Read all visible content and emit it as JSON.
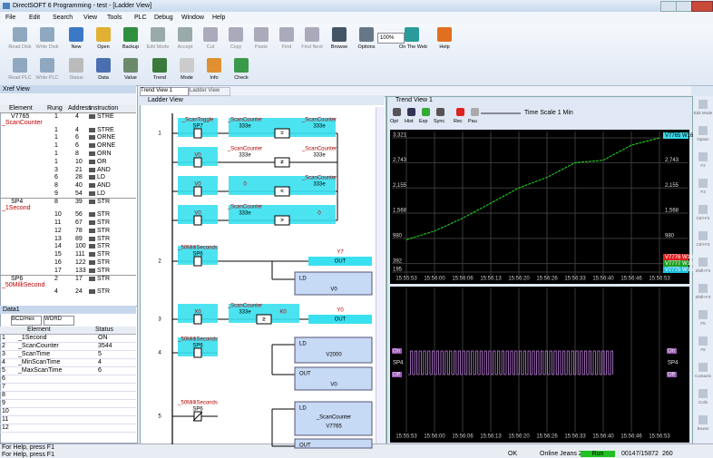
{
  "window": {
    "title": "DirectSOFT 6 Programming - test - [Ladder View]"
  },
  "menu": [
    "File",
    "Edit",
    "Search",
    "View",
    "Tools",
    "PLC",
    "Debug",
    "Window",
    "Help"
  ],
  "toolbar1": [
    "Read Disk",
    "Write Disk",
    "New",
    "Open",
    "Backup",
    "Edit Mode",
    "Accept",
    "Cut",
    "Copy",
    "Paste",
    "Find",
    "Find Next",
    "Browse",
    "Options",
    "100%",
    "On The Web",
    "Help"
  ],
  "toolbar2": [
    "Read PLC",
    "Write PLC",
    "Status",
    "Data",
    "Value",
    "Trend",
    "Mode",
    "Info",
    "Check"
  ],
  "xref": {
    "title": "Xref View",
    "columns": [
      "Element",
      "Rung",
      "Address",
      "Instruction"
    ],
    "rows": [
      {
        "element": "V7765",
        "nickname": "_ScanCounter",
        "rung": 1,
        "address": 4,
        "instruction": "STRE"
      },
      {
        "rung": 1,
        "address": 4,
        "instruction": "STRE"
      },
      {
        "rung": 1,
        "address": 6,
        "instruction": "ORNE"
      },
      {
        "rung": 1,
        "address": 6,
        "instruction": "ORNE"
      },
      {
        "rung": 1,
        "address": 8,
        "instruction": "ORN"
      },
      {
        "rung": 1,
        "address": 10,
        "instruction": "OR"
      },
      {
        "rung": 3,
        "address": 21,
        "instruction": "AND"
      },
      {
        "rung": 6,
        "address": 28,
        "instruction": "LD"
      },
      {
        "rung": 8,
        "address": 40,
        "instruction": "AND"
      },
      {
        "rung": 9,
        "address": 54,
        "instruction": "LD"
      },
      {
        "element": "SP4",
        "nickname": "_1Second",
        "rung": 8,
        "address": 39,
        "instruction": "STR"
      },
      {
        "rung": 10,
        "address": 56,
        "instruction": "STR"
      },
      {
        "rung": 11,
        "address": 67,
        "instruction": "STR"
      },
      {
        "rung": 12,
        "address": 78,
        "instruction": "STR"
      },
      {
        "rung": 13,
        "address": 89,
        "instruction": "STR"
      },
      {
        "rung": 14,
        "address": 100,
        "instruction": "STR"
      },
      {
        "rung": 15,
        "address": 111,
        "instruction": "STR"
      },
      {
        "rung": 16,
        "address": 122,
        "instruction": "STR"
      },
      {
        "rung": 17,
        "address": 133,
        "instruction": "STR"
      },
      {
        "element": "SP6",
        "nickname": "_50MilliSecond",
        "rung": 2,
        "address": 17,
        "instruction": "STR"
      },
      {
        "rung": 4,
        "address": 24,
        "instruction": "STR"
      }
    ]
  },
  "data_view": {
    "title": "Data1",
    "format": "BCD/Hex",
    "size": "WORD",
    "columns": [
      "Element",
      "Status"
    ],
    "row_numbers": [
      1,
      2,
      3,
      4,
      5,
      6,
      7,
      8,
      9,
      10,
      11,
      12
    ],
    "rows": [
      [
        "_1Second",
        "ON"
      ],
      [
        "_ScanCounter",
        3544
      ],
      [
        "_ScanTime",
        5
      ],
      [
        "_MinScanTime",
        4
      ],
      [
        "_MaxScanTime",
        6
      ]
    ]
  },
  "tabs": [
    "Trend View 1",
    "Ladder View"
  ],
  "ladder": {
    "title": "Ladder View",
    "rungs": [
      {
        "number": 1,
        "rows": [
          [
            {
              "type": "contact",
              "active": true,
              "lines": [
                "_ScanToggle",
                "SP7"
              ]
            },
            {
              "type": "compare",
              "active": true,
              "left": [
                "_ScanCounter",
                "333e"
              ],
              "op": "=",
              "right": [
                "_ScanCounter",
                "333e"
              ]
            }
          ],
          [
            {
              "type": "contact",
              "active": true,
              "lines": [
                "V0"
              ]
            },
            {
              "type": "compare",
              "active": false,
              "left": [
                "_ScanCounter",
                "333e"
              ],
              "op": "≠",
              "right": [
                "_ScanCounter",
                "333e"
              ]
            }
          ],
          [
            {
              "type": "contact",
              "active": true,
              "lines": [
                "V0"
              ]
            },
            {
              "type": "compare",
              "active": true,
              "left": [
                "0"
              ],
              "op": "<",
              "right": [
                "_ScanCounter",
                "333e"
              ]
            }
          ],
          [
            {
              "type": "contact",
              "active": true,
              "lines": [
                "V0"
              ]
            },
            {
              "type": "compare",
              "active": true,
              "left": [
                "_ScanCounter",
                "333e"
              ],
              "op": ">",
              "right": [
                "0"
              ]
            }
          ]
        ],
        "boxes": []
      },
      {
        "number": 2,
        "rows": [
          [
            {
              "type": "contact",
              "active": true,
              "lines": [
                "_50MilliSeconds",
                "SP6"
              ]
            },
            {
              "type": "coil",
              "active": true,
              "lines": [
                "Y7",
                "OUT"
              ]
            }
          ]
        ],
        "boxes": [
          [
            "LD",
            "V0"
          ]
        ]
      },
      {
        "number": 3,
        "rows": [
          [
            {
              "type": "contact",
              "active": true,
              "lines": [
                "X0"
              ]
            },
            {
              "type": "compare",
              "active": true,
              "left": [
                "_ScanCounter",
                "333e"
              ],
              "op": "≥",
              "right": [
                "K0"
              ]
            },
            {
              "type": "coil",
              "active": true,
              "lines": [
                "Y0",
                "OUT"
              ]
            }
          ]
        ],
        "boxes": []
      },
      {
        "number": 4,
        "rows": [
          [
            {
              "type": "contact",
              "active": true,
              "lines": [
                "_50MilliSeconds",
                "SP6"
              ]
            }
          ]
        ],
        "boxes": [
          [
            "LD",
            "V2000"
          ],
          [
            "OUT",
            "V0"
          ]
        ]
      },
      {
        "number": 5,
        "rows": [
          [
            {
              "type": "contact",
              "active": false,
              "lines": [
                "_50MilliSeconds",
                "SP6"
              ]
            }
          ]
        ],
        "boxes": [
          [
            "LD",
            "_ScanCounter",
            "V7765"
          ],
          [
            "OUT"
          ]
        ]
      }
    ]
  },
  "trend": {
    "title": "Trend View 1",
    "buttons": [
      "Opt",
      "Hist",
      "Exp",
      "Sync",
      "Rec",
      "Pau"
    ],
    "time_scale": "Time Scale 1 Min",
    "top": {
      "type": "line",
      "x": [
        "15:55:53",
        "15:56:00",
        "15:56:06",
        "15:56:13",
        "15:56:20",
        "15:56:26",
        "15:56:33",
        "15:56:40",
        "15:56:46",
        "15:56:53"
      ],
      "ylim": [
        195,
        3321
      ],
      "yticks": [
        195,
        392,
        980,
        {
          "value": 1568,
          "label": "1,568"
        },
        {
          "value": 2155,
          "label": "2,155"
        },
        {
          "value": 2743,
          "label": "2,743"
        },
        {
          "value": 3321,
          "label": "3,321"
        }
      ],
      "grid": true,
      "series": [
        {
          "name": "V7765 W16",
          "color": "#22e022",
          "values": [
            950,
            1150,
            1450,
            1800,
            2155,
            2400,
            2743,
            2800,
            3150,
            3321
          ]
        }
      ],
      "legend_extra": [
        {
          "name": "V7776 W16",
          "color": "#e02020"
        },
        {
          "name": "V7777 W16",
          "color": "#20a020"
        },
        {
          "name": "V7775 W16",
          "color": "#20c0e0"
        }
      ]
    },
    "bottom": {
      "on": "On",
      "name": "SP4",
      "off": "Off",
      "color": "#c080e0"
    }
  },
  "sidebar": [
    "Edit Mode",
    "Option",
    "F2",
    "F3",
    "Ctrl+F2",
    "Ctrl+F3",
    "Shift+F2",
    "Shift+F3",
    "F5",
    "F6",
    "Contacts",
    "Coils",
    "Boxes"
  ],
  "status": {
    "help": "For Help, press F1",
    "ok": "OK",
    "online": "Online Jeans 260",
    "mode": "Run",
    "memory": "00147/15872",
    "scan": "260"
  }
}
